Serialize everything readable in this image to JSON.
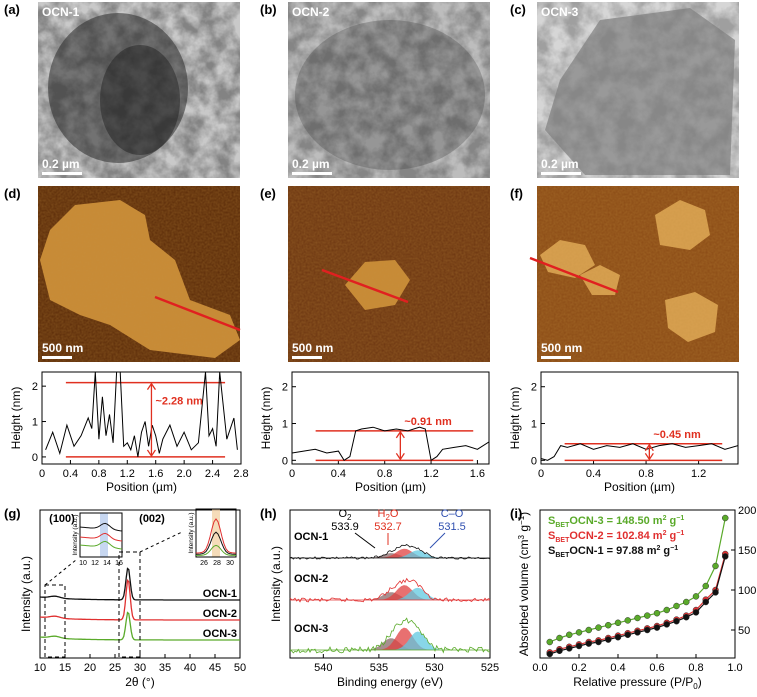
{
  "panels": {
    "a": {
      "letter": "(a)",
      "label": "OCN-1",
      "scale": "0.2 µm"
    },
    "b": {
      "letter": "(b)",
      "label": "OCN-2",
      "scale": "0.2 µm"
    },
    "c": {
      "letter": "(c)",
      "label": "OCN-3",
      "scale": "0.2 µm"
    },
    "d": {
      "letter": "(d)",
      "scale": "500 nm"
    },
    "e": {
      "letter": "(e)",
      "scale": "500 nm"
    },
    "f": {
      "letter": "(f)",
      "scale": "500 nm"
    },
    "g": {
      "letter": "(g)"
    },
    "h": {
      "letter": "(h)"
    },
    "i": {
      "letter": "(i)"
    }
  },
  "colors": {
    "ocn1": "#111111",
    "ocn2": "#e03030",
    "ocn3": "#5aaa2a",
    "marker": "#e03020",
    "oxygen_blue": "#3050b0"
  },
  "chart_data": [
    {
      "type": "line",
      "id": "d-profile",
      "xlabel": "Position (µm)",
      "ylabel": "Height (nm)",
      "xlim": [
        0,
        2.8
      ],
      "ylim": [
        -0.2,
        2.4
      ],
      "xticks": [
        "0",
        "0.4",
        "0.8",
        "1.2",
        "1.6",
        "2.0",
        "2.4",
        "2.8"
      ],
      "yticks": [
        "0",
        "1",
        "2"
      ],
      "annotation": "~2.28 nm",
      "levels": [
        0,
        2.1
      ],
      "x": [
        0.05,
        0.15,
        0.25,
        0.35,
        0.45,
        0.55,
        0.65,
        0.7,
        0.75,
        0.8,
        0.85,
        0.9,
        0.95,
        1.0,
        1.05,
        1.1,
        1.15,
        1.2,
        1.25,
        1.3,
        1.35,
        1.4,
        1.45,
        1.5,
        1.55,
        1.6,
        1.65,
        1.7,
        1.8,
        1.9,
        2.0,
        2.1,
        2.2,
        2.3,
        2.35,
        2.4,
        2.45,
        2.5,
        2.6,
        2.7,
        2.75
      ],
      "y": [
        0.2,
        0.7,
        0.1,
        0.9,
        0.3,
        0.6,
        1.1,
        0.8,
        2.4,
        0.5,
        1.7,
        0.6,
        1.2,
        0.4,
        2.4,
        2.4,
        0.3,
        0.4,
        0.2,
        0.6,
        0.0,
        0.7,
        1.0,
        0.3,
        0.9,
        0.6,
        0.1,
        0.5,
        0.9,
        0.3,
        0.7,
        0.2,
        0.4,
        2.4,
        0.6,
        0.8,
        0.3,
        2.4,
        0.5,
        1.1,
        0.2
      ]
    },
    {
      "type": "line",
      "id": "e-profile",
      "xlabel": "Position (µm)",
      "ylabel": "Height (nm)",
      "xlim": [
        0,
        1.7
      ],
      "ylim": [
        -0.1,
        2.4
      ],
      "xticks": [
        "0",
        "0.4",
        "0.8",
        "1.2",
        "1.6"
      ],
      "yticks": [
        "0",
        "1",
        "2"
      ],
      "annotation": "~0.91 nm",
      "levels": [
        0,
        0.8
      ],
      "x": [
        0.0,
        0.1,
        0.2,
        0.3,
        0.4,
        0.45,
        0.5,
        0.55,
        0.6,
        0.7,
        0.8,
        0.9,
        1.0,
        1.1,
        1.15,
        1.2,
        1.25,
        1.3,
        1.4,
        1.5,
        1.6,
        1.7
      ],
      "y": [
        0.2,
        0.25,
        0.3,
        0.2,
        0.25,
        0.0,
        0.1,
        0.8,
        0.85,
        0.9,
        0.8,
        0.85,
        0.8,
        0.9,
        0.85,
        0.0,
        0.1,
        0.3,
        0.35,
        0.4,
        0.3,
        0.5
      ]
    },
    {
      "type": "line",
      "id": "f-profile",
      "xlabel": "Position (µm)",
      "ylabel": "Height (nm)",
      "xlim": [
        0,
        1.5
      ],
      "ylim": [
        -0.1,
        2.4
      ],
      "xticks": [
        "0",
        "0.4",
        "0.8",
        "1.2"
      ],
      "yticks": [
        "0",
        "1",
        "2"
      ],
      "annotation": "~0.45 nm",
      "levels": [
        0,
        0.45
      ],
      "x": [
        0.0,
        0.05,
        0.1,
        0.15,
        0.2,
        0.3,
        0.4,
        0.5,
        0.6,
        0.7,
        0.8,
        0.9,
        1.0,
        1.1,
        1.2,
        1.3,
        1.4,
        1.5
      ],
      "y": [
        0.05,
        0.0,
        0.1,
        0.4,
        0.35,
        0.45,
        0.3,
        0.4,
        0.35,
        0.45,
        0.3,
        0.4,
        0.45,
        0.35,
        0.4,
        0.45,
        0.3,
        0.4
      ]
    },
    {
      "type": "line",
      "id": "g-xrd",
      "xlabel": "2θ (°)",
      "ylabel": "Intensity (a.u.)",
      "xlim": [
        10,
        50
      ],
      "xticks": [
        "10",
        "15",
        "20",
        "25",
        "30",
        "35",
        "40",
        "45",
        "50"
      ],
      "peaks": [
        "(100)",
        "(002)"
      ],
      "inset_ylabel": "Intensity (a.u.)",
      "inset1_xticks": [
        "10",
        "12",
        "14",
        "16"
      ],
      "inset2_xticks": [
        "26",
        "28",
        "30"
      ],
      "series": [
        {
          "name": "OCN-1",
          "offset": 2.0,
          "peak_height": 1.15
        },
        {
          "name": "OCN-2",
          "offset": 1.0,
          "peak_height": 1.45
        },
        {
          "name": "OCN-3",
          "offset": 0.0,
          "peak_height": 1.0
        }
      ]
    },
    {
      "type": "line",
      "id": "h-xps",
      "xlabel": "Binding energy (eV)",
      "ylabel": "Intensity (a.u.)",
      "xlim": [
        543,
        525
      ],
      "xticks": [
        "540",
        "535",
        "530",
        "525"
      ],
      "components": [
        {
          "name": "O",
          "sub": "2",
          "value": "533.9",
          "center": 533.9
        },
        {
          "name": "H",
          "sub": "2",
          "tail": "O",
          "value": "532.7",
          "center": 532.7
        },
        {
          "name": "C–O",
          "value": "531.5",
          "center": 531.5
        }
      ],
      "series": [
        {
          "name": "OCN-1",
          "scale": 0.5
        },
        {
          "name": "OCN-2",
          "scale": 0.8
        },
        {
          "name": "OCN-3",
          "scale": 1.2
        }
      ]
    },
    {
      "type": "line",
      "id": "i-bet",
      "xlabel": "Relative pressure (P/P",
      "xlabel_sub": "0",
      "xlabel_tail": ")",
      "ylabel": "Absorbed volume (cm",
      "ylabel_sup": "3",
      "ylabel_tail": " g",
      "ylabel_sup2": "−1",
      "ylabel_end": ")",
      "xlim": [
        0,
        1.0
      ],
      "ylim": [
        15,
        200
      ],
      "xticks": [
        "0.0",
        "0.2",
        "0.4",
        "0.6",
        "0.8",
        "1.0"
      ],
      "yticks": [
        "50",
        "100",
        "150",
        "200"
      ],
      "bet_labels": [
        {
          "prefix": "S",
          "sub": "BET",
          "text": "OCN-3 = 148.50 m",
          "sup": "2",
          "unit": " g",
          "sup2": "−1"
        },
        {
          "prefix": "S",
          "sub": "BET",
          "text": "OCN-2 = 102.84 m",
          "sup": "2",
          "unit": " g",
          "sup2": "−1"
        },
        {
          "prefix": "S",
          "sub": "BET",
          "text": "OCN-1 = 97.88 m",
          "sup": "2",
          "unit": " g",
          "sup2": "−1"
        }
      ],
      "x": [
        0.05,
        0.1,
        0.15,
        0.2,
        0.25,
        0.3,
        0.35,
        0.4,
        0.45,
        0.5,
        0.55,
        0.6,
        0.65,
        0.7,
        0.75,
        0.8,
        0.85,
        0.9,
        0.95
      ],
      "series": [
        {
          "name": "OCN-3",
          "values": [
            35,
            40,
            44,
            47,
            50,
            53,
            56,
            59,
            62,
            65,
            68,
            71,
            75,
            80,
            85,
            92,
            105,
            130,
            190
          ]
        },
        {
          "name": "OCN-2",
          "values": [
            22,
            26,
            29,
            32,
            35,
            37,
            40,
            43,
            46,
            49,
            52,
            55,
            59,
            63,
            68,
            75,
            88,
            100,
            145
          ]
        },
        {
          "name": "OCN-1",
          "values": [
            20,
            24,
            27,
            30,
            33,
            35,
            38,
            41,
            44,
            47,
            50,
            53,
            57,
            61,
            66,
            72,
            85,
            97,
            142
          ]
        }
      ]
    }
  ]
}
